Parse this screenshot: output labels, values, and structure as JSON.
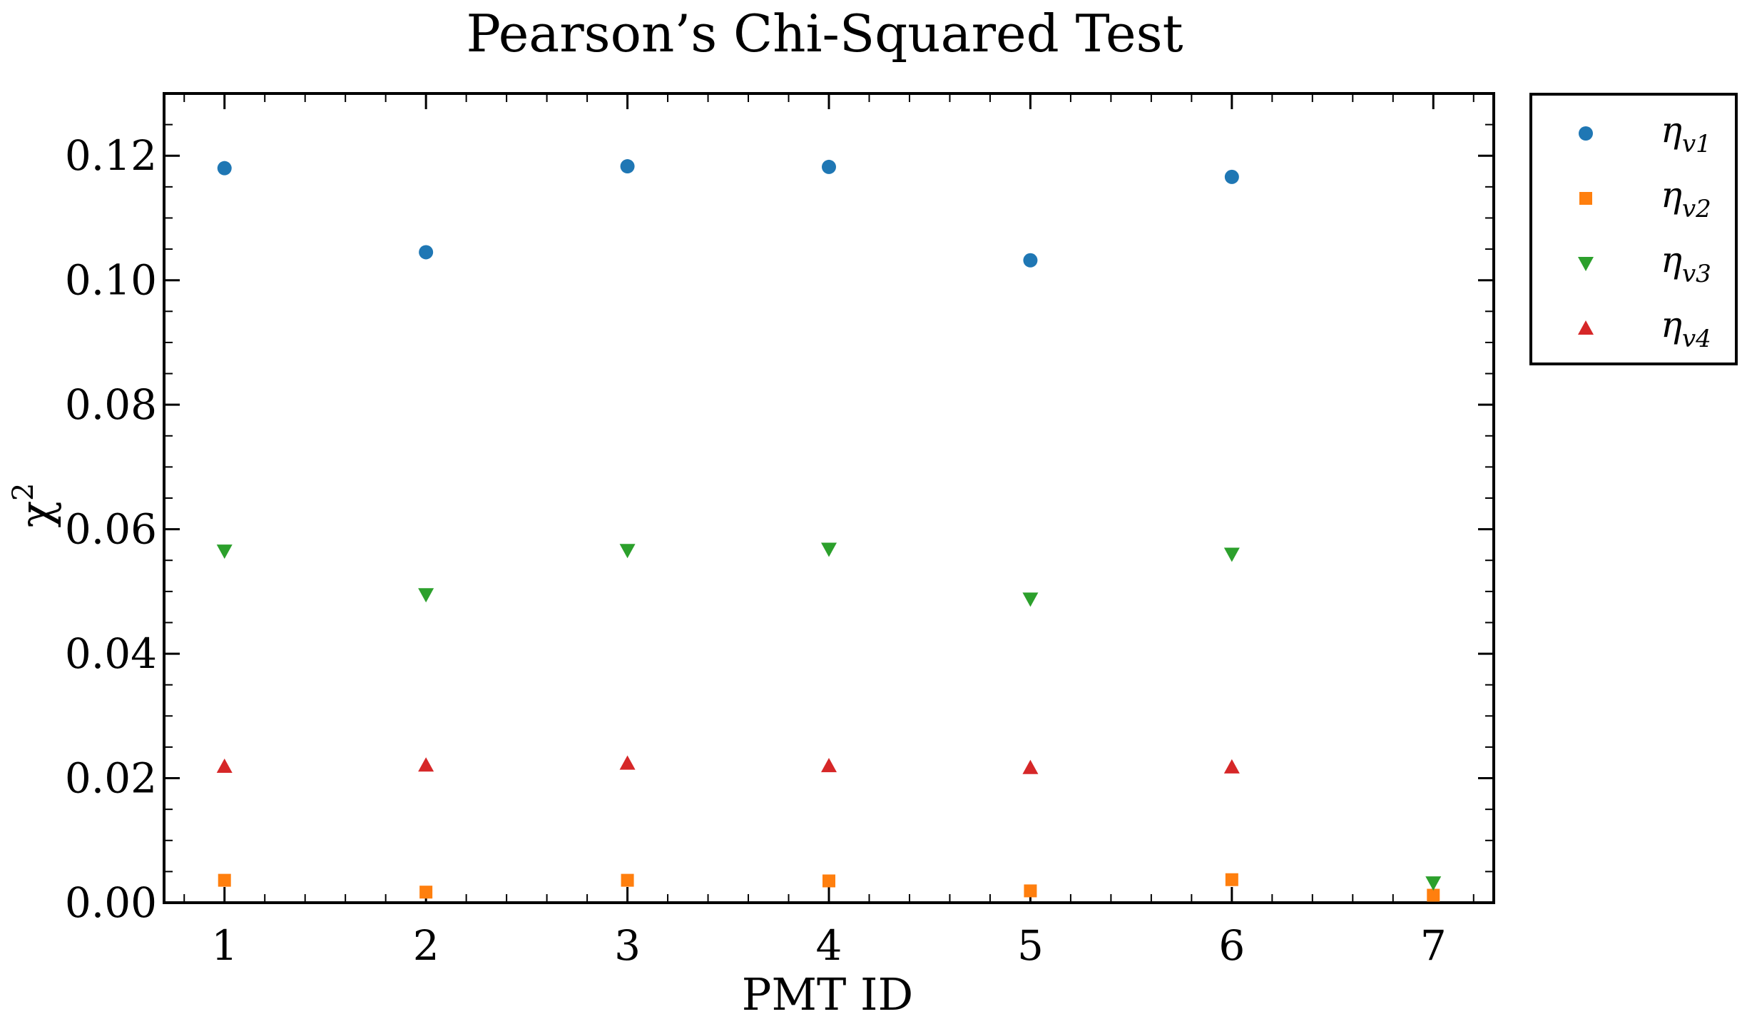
{
  "chart_data": {
    "type": "scatter",
    "title": "Pearson’s Chi-Squared Test",
    "xlabel": "PMT ID",
    "ylabel": "χ",
    "ylabel_sup": "2",
    "xlim": [
      0.7,
      7.3
    ],
    "ylim": [
      0.0,
      0.13
    ],
    "xticks": [
      1,
      2,
      3,
      4,
      5,
      6,
      7
    ],
    "xtick_labels": [
      "1",
      "2",
      "3",
      "4",
      "5",
      "6",
      "7"
    ],
    "yticks": [
      0.0,
      0.02,
      0.04,
      0.06,
      0.08,
      0.1,
      0.12
    ],
    "ytick_labels": [
      "0.00",
      "0.02",
      "0.04",
      "0.06",
      "0.08",
      "0.10",
      "0.12"
    ],
    "grid": false,
    "legend_position": "outside-right-top",
    "series": [
      {
        "name": "η",
        "name_sub": "v1",
        "marker": "circle",
        "color": "#1f77b4",
        "x": [
          1,
          2,
          3,
          4,
          5,
          6
        ],
        "y": [
          0.118,
          0.1045,
          0.1183,
          0.1182,
          0.1032,
          0.1166
        ]
      },
      {
        "name": "η",
        "name_sub": "v2",
        "marker": "square",
        "color": "#ff7f0e",
        "x": [
          1,
          2,
          3,
          4,
          5,
          6,
          7
        ],
        "y": [
          0.0036,
          0.0017,
          0.0036,
          0.0035,
          0.0019,
          0.0037,
          0.0012
        ]
      },
      {
        "name": "η",
        "name_sub": "v3",
        "marker": "triangle-down",
        "color": "#2ca02c",
        "x": [
          1,
          2,
          3,
          4,
          5,
          6,
          7
        ],
        "y": [
          0.0565,
          0.0495,
          0.0566,
          0.0568,
          0.0488,
          0.056,
          0.0032
        ]
      },
      {
        "name": "η",
        "name_sub": "v4",
        "marker": "triangle-up",
        "color": "#d62728",
        "x": [
          1,
          2,
          3,
          4,
          5,
          6
        ],
        "y": [
          0.0219,
          0.0221,
          0.0224,
          0.022,
          0.0217,
          0.0218
        ]
      }
    ]
  }
}
